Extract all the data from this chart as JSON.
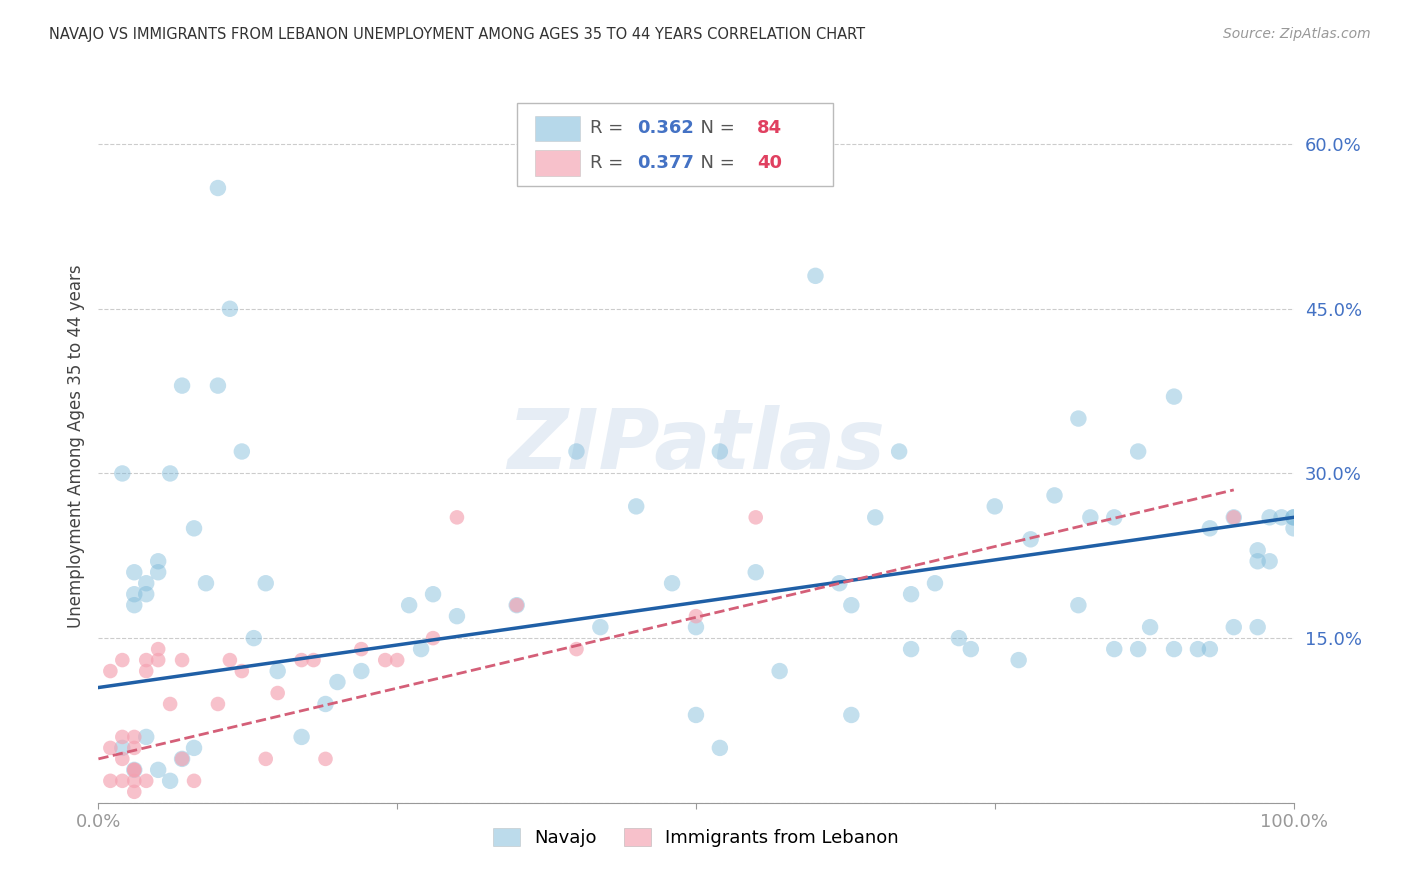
{
  "title": "NAVAJO VS IMMIGRANTS FROM LEBANON UNEMPLOYMENT AMONG AGES 35 TO 44 YEARS CORRELATION CHART",
  "source": "Source: ZipAtlas.com",
  "ylabel": "Unemployment Among Ages 35 to 44 years",
  "xlim": [
    0.0,
    1.0
  ],
  "ylim": [
    0.0,
    0.65
  ],
  "xticks": [
    0.0,
    0.25,
    0.5,
    0.75,
    1.0
  ],
  "xticklabels": [
    "0.0%",
    "",
    "",
    "",
    "100.0%"
  ],
  "yticks": [
    0.0,
    0.15,
    0.3,
    0.45,
    0.6
  ],
  "yticklabels": [
    "",
    "15.0%",
    "30.0%",
    "45.0%",
    "60.0%"
  ],
  "navajo_R": 0.362,
  "navajo_N": 84,
  "lebanon_R": 0.377,
  "lebanon_N": 40,
  "navajo_color": "#7ab8d9",
  "lebanon_color": "#f4a0b0",
  "trend_navajo_color": "#1f5fa6",
  "trend_lebanon_color": "#d45f78",
  "navajo_line_x0": 0.0,
  "navajo_line_y0": 0.105,
  "navajo_line_x1": 1.0,
  "navajo_line_y1": 0.26,
  "lebanon_line_x0": 0.0,
  "lebanon_line_y0": 0.04,
  "lebanon_line_x1": 0.95,
  "lebanon_line_y1": 0.285,
  "watermark_text": "ZIPatlas",
  "navajo_x": [
    0.02,
    0.02,
    0.03,
    0.03,
    0.03,
    0.03,
    0.04,
    0.04,
    0.04,
    0.05,
    0.05,
    0.05,
    0.06,
    0.06,
    0.07,
    0.07,
    0.08,
    0.08,
    0.09,
    0.1,
    0.1,
    0.11,
    0.12,
    0.13,
    0.14,
    0.15,
    0.17,
    0.19,
    0.2,
    0.22,
    0.26,
    0.27,
    0.28,
    0.3,
    0.35,
    0.4,
    0.42,
    0.45,
    0.48,
    0.5,
    0.5,
    0.52,
    0.55,
    0.57,
    0.6,
    0.62,
    0.63,
    0.65,
    0.67,
    0.68,
    0.7,
    0.72,
    0.73,
    0.75,
    0.77,
    0.78,
    0.8,
    0.82,
    0.83,
    0.85,
    0.85,
    0.87,
    0.88,
    0.9,
    0.9,
    0.92,
    0.93,
    0.95,
    0.95,
    0.97,
    0.97,
    0.98,
    0.98,
    0.99,
    1.0,
    1.0,
    0.52,
    0.63,
    0.68,
    0.82,
    0.87,
    0.93,
    0.97,
    1.0
  ],
  "navajo_y": [
    0.3,
    0.05,
    0.18,
    0.19,
    0.21,
    0.03,
    0.19,
    0.2,
    0.06,
    0.21,
    0.22,
    0.03,
    0.3,
    0.02,
    0.38,
    0.04,
    0.25,
    0.05,
    0.2,
    0.56,
    0.38,
    0.45,
    0.32,
    0.15,
    0.2,
    0.12,
    0.06,
    0.09,
    0.11,
    0.12,
    0.18,
    0.14,
    0.19,
    0.17,
    0.18,
    0.32,
    0.16,
    0.27,
    0.2,
    0.16,
    0.08,
    0.32,
    0.21,
    0.12,
    0.48,
    0.2,
    0.18,
    0.26,
    0.32,
    0.14,
    0.2,
    0.15,
    0.14,
    0.27,
    0.13,
    0.24,
    0.28,
    0.18,
    0.26,
    0.26,
    0.14,
    0.14,
    0.16,
    0.37,
    0.14,
    0.14,
    0.25,
    0.16,
    0.26,
    0.23,
    0.22,
    0.22,
    0.26,
    0.26,
    0.25,
    0.26,
    0.05,
    0.08,
    0.19,
    0.35,
    0.32,
    0.14,
    0.16,
    0.26
  ],
  "lebanon_x": [
    0.01,
    0.01,
    0.01,
    0.02,
    0.02,
    0.02,
    0.02,
    0.03,
    0.03,
    0.03,
    0.03,
    0.03,
    0.03,
    0.04,
    0.04,
    0.04,
    0.05,
    0.05,
    0.06,
    0.07,
    0.07,
    0.08,
    0.1,
    0.11,
    0.12,
    0.14,
    0.15,
    0.17,
    0.18,
    0.19,
    0.22,
    0.24,
    0.25,
    0.28,
    0.3,
    0.35,
    0.4,
    0.5,
    0.55,
    0.95
  ],
  "lebanon_y": [
    0.12,
    0.05,
    0.02,
    0.04,
    0.06,
    0.13,
    0.02,
    0.01,
    0.02,
    0.03,
    0.05,
    0.03,
    0.06,
    0.12,
    0.13,
    0.02,
    0.13,
    0.14,
    0.09,
    0.13,
    0.04,
    0.02,
    0.09,
    0.13,
    0.12,
    0.04,
    0.1,
    0.13,
    0.13,
    0.04,
    0.14,
    0.13,
    0.13,
    0.15,
    0.26,
    0.18,
    0.14,
    0.17,
    0.26,
    0.26
  ]
}
